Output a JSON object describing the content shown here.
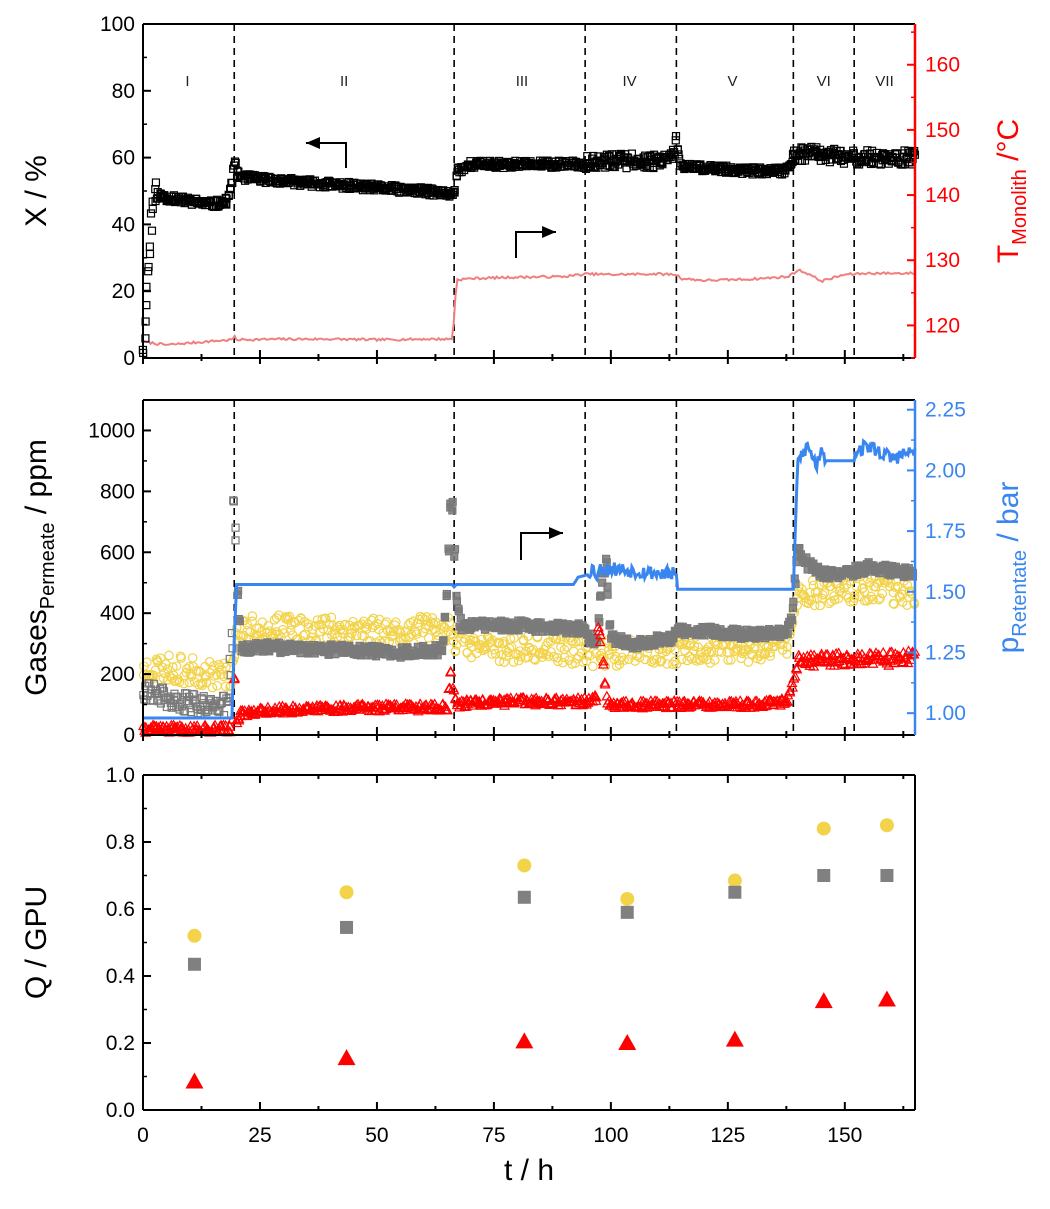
{
  "chart_data": [
    {
      "type": "scatter",
      "panel": "top",
      "xlim": [
        0,
        165
      ],
      "ylim": [
        0,
        100
      ],
      "y2lim": [
        115,
        166.25
      ],
      "yticks": [
        "0",
        "20",
        "40",
        "60",
        "80",
        "100"
      ],
      "y2ticks": [
        "120",
        "130",
        "140",
        "150",
        "160"
      ],
      "ylabel": "X / %",
      "y2label": {
        "base": "T",
        "sub": "Monolith",
        "rest": " /°C"
      },
      "colors": {
        "x": "#000000",
        "t": "#f08080",
        "axis2": "#ff0000"
      },
      "regions": [
        "I",
        "II",
        "III",
        "IV",
        "V",
        "VI",
        "VII"
      ],
      "region_centers": [
        9.5,
        43,
        81,
        104,
        126,
        145.5,
        158.5
      ],
      "dividers": [
        19.5,
        66.5,
        94.5,
        114,
        139,
        152
      ],
      "series": [
        {
          "axis": "left",
          "style": "open-square-dense",
          "x": [
            0,
            0.5,
            1,
            1.5,
            2,
            2.5,
            3,
            5,
            10,
            15,
            18,
            19,
            19.5,
            20,
            22,
            30,
            40,
            50,
            60,
            66,
            66.5,
            67,
            70,
            80,
            90,
            94,
            95,
            100,
            110,
            113,
            114,
            115,
            120,
            130,
            137,
            138,
            139,
            140,
            145,
            150,
            155,
            160,
            165
          ],
          "y": [
            2,
            10,
            25,
            32,
            45,
            48,
            49,
            48,
            47,
            46,
            47,
            52,
            60,
            55,
            54,
            53,
            52,
            51,
            50,
            49,
            49,
            56,
            58,
            58,
            58,
            58,
            59,
            59,
            59,
            61,
            65,
            57,
            57,
            56,
            56,
            57,
            60,
            61,
            61,
            60,
            60,
            60,
            60
          ]
        },
        {
          "axis": "right",
          "style": "line",
          "x": [
            0,
            5,
            10,
            15,
            19,
            19.5,
            20,
            30,
            40,
            50,
            60,
            66,
            66.5,
            67,
            70,
            80,
            90,
            95,
            100,
            110,
            114,
            115,
            120,
            130,
            138,
            140,
            142,
            145,
            150,
            155,
            165
          ],
          "y": [
            117.5,
            117.0,
            117.3,
            117.6,
            117.8,
            118.3,
            117.8,
            117.9,
            117.9,
            117.8,
            117.9,
            117.9,
            121,
            127.0,
            127.2,
            127.4,
            127.5,
            127.9,
            127.8,
            127.9,
            127.8,
            127.2,
            126.9,
            127.1,
            127.5,
            128.5,
            128.0,
            126.8,
            127.8,
            128.0,
            128.0
          ]
        }
      ]
    },
    {
      "type": "scatter",
      "panel": "middle",
      "xlim": [
        0,
        165
      ],
      "ylim": [
        0,
        1100
      ],
      "y2lim": [
        0.91,
        2.29
      ],
      "yticks": [
        "0",
        "200",
        "400",
        "600",
        "800",
        "1000"
      ],
      "y2ticks": [
        "1.00",
        "1.25",
        "1.50",
        "1.75",
        "2.00",
        "2.25"
      ],
      "ylabel": {
        "base": "Gases",
        "sub": "Permeate",
        "rest": " / ppm"
      },
      "y2label": {
        "base": "p",
        "sub": "Retentate",
        "rest": " / bar"
      },
      "colors": {
        "gray": "#7a7a7a",
        "yellow": "#f2d34a",
        "red": "#ff0000",
        "blue": "#3a86f0"
      },
      "dividers": [
        19.5,
        66.5,
        94.5,
        114,
        139,
        152
      ],
      "series": [
        {
          "axis": "left",
          "color": "gray",
          "style": "square-band",
          "x": [
            0,
            5,
            10,
            15,
            18,
            19,
            19.5,
            20,
            21,
            25,
            35,
            45,
            55,
            64,
            65,
            66,
            67,
            68,
            70,
            80,
            90,
            94,
            95,
            97,
            98,
            99,
            100,
            105,
            110,
            113,
            114,
            120,
            130,
            137,
            138,
            139,
            140,
            142,
            145,
            150,
            155,
            160,
            165
          ],
          "y": [
            150,
            120,
            100,
            110,
            90,
            300,
            900,
            500,
            280,
            290,
            280,
            280,
            270,
            280,
            450,
            830,
            450,
            350,
            360,
            360,
            350,
            350,
            320,
            310,
            500,
            580,
            320,
            300,
            310,
            320,
            340,
            340,
            330,
            340,
            350,
            420,
            620,
            560,
            530,
            530,
            550,
            540,
            530
          ]
        },
        {
          "axis": "left",
          "color": "yellow",
          "style": "circle-band",
          "x": [
            0,
            5,
            10,
            15,
            19,
            20,
            25,
            35,
            45,
            55,
            65,
            66,
            67,
            70,
            80,
            90,
            95,
            100,
            110,
            114,
            120,
            130,
            138,
            139,
            140,
            145,
            150,
            155,
            160,
            165
          ],
          "y": [
            220,
            220,
            210,
            200,
            200,
            340,
            350,
            350,
            350,
            340,
            350,
            340,
            310,
            290,
            280,
            280,
            270,
            270,
            270,
            270,
            280,
            280,
            300,
            400,
            460,
            470,
            480,
            480,
            470,
            470
          ]
        },
        {
          "axis": "left",
          "color": "red",
          "style": "triangle-band",
          "x": [
            0,
            5,
            10,
            15,
            19,
            19.5,
            20,
            21,
            25,
            35,
            45,
            55,
            65,
            66,
            66.5,
            67,
            70,
            80,
            90,
            95,
            97,
            97.5,
            98,
            99,
            100,
            105,
            110,
            114,
            120,
            130,
            137,
            138,
            139,
            140,
            145,
            150,
            155,
            160,
            165
          ],
          "y": [
            20,
            20,
            20,
            20,
            20,
            200,
            50,
            70,
            80,
            85,
            90,
            90,
            90,
            210,
            120,
            100,
            105,
            110,
            110,
            110,
            120,
            400,
            280,
            120,
            100,
            100,
            100,
            100,
            100,
            100,
            110,
            120,
            170,
            240,
            250,
            250,
            250,
            250,
            260
          ]
        },
        {
          "axis": "right",
          "color": "blue",
          "style": "line",
          "x": [
            0,
            19,
            19.5,
            20,
            30,
            40,
            50,
            60,
            66,
            66.5,
            67,
            70,
            80,
            90,
            92,
            93,
            95,
            96,
            97,
            98,
            114,
            114.1,
            120,
            130,
            139,
            139.5,
            140,
            142,
            144,
            145,
            146,
            152,
            152.1,
            155,
            160,
            165
          ],
          "y": [
            0.98,
            0.98,
            1.3,
            1.53,
            1.53,
            1.53,
            1.53,
            1.53,
            1.53,
            1.52,
            1.53,
            1.53,
            1.53,
            1.53,
            1.53,
            1.56,
            1.57,
            1.6,
            1.57,
            1.6,
            1.57,
            1.51,
            1.51,
            1.51,
            1.51,
            1.8,
            2.04,
            2.1,
            2.02,
            2.1,
            2.04,
            2.04,
            2.08,
            2.1,
            2.05,
            2.08
          ]
        }
      ]
    },
    {
      "type": "scatter",
      "panel": "bottom",
      "xlim": [
        0,
        165
      ],
      "ylim": [
        0,
        1.0
      ],
      "yticks": [
        "0.0",
        "0.2",
        "0.4",
        "0.6",
        "0.8",
        "1.0"
      ],
      "xticks": [
        "0",
        "25",
        "50",
        "75",
        "100",
        "125",
        "150"
      ],
      "ylabel": "Q / GPU",
      "xlabel": "t / h",
      "series": [
        {
          "marker": "circle",
          "color": "#f2d34a",
          "x": [
            11,
            43.5,
            81.5,
            103.5,
            126.5,
            145.5,
            159
          ],
          "y": [
            0.52,
            0.65,
            0.73,
            0.63,
            0.685,
            0.84,
            0.85
          ]
        },
        {
          "marker": "square",
          "color": "#808080",
          "x": [
            11,
            43.5,
            81.5,
            103.5,
            126.5,
            145.5,
            159
          ],
          "y": [
            0.435,
            0.545,
            0.635,
            0.59,
            0.65,
            0.7,
            0.7
          ]
        },
        {
          "marker": "triangle",
          "color": "#ff0000",
          "x": [
            11,
            43.5,
            81.5,
            103.5,
            126.5,
            145.5,
            159
          ],
          "y": [
            0.085,
            0.155,
            0.205,
            0.2,
            0.21,
            0.325,
            0.33
          ]
        }
      ]
    }
  ]
}
